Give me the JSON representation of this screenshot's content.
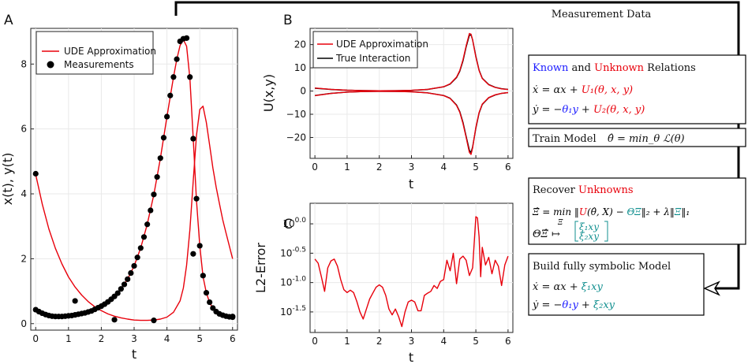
{
  "panels": {
    "a": "A",
    "b": "B",
    "c": "C"
  },
  "flow": {
    "title": "Measurement Data",
    "box1": {
      "known": "Known",
      "and": " and ",
      "unknown": "Unknown",
      "relations": " Relations",
      "eq1": "ẋ = αx + U₁(θ, x, y)",
      "eq2": "ẏ = −θ₁y + U₂(θ, x, y)"
    },
    "box2": {
      "label": "Train Model",
      "eq": "θ̂ = min_θ ℒ(θ)"
    },
    "box3": {
      "recover": "Recover ",
      "unknowns": "Unknowns",
      "eq1": "Ξ̂ = min_Ξ ‖U(θ̂, X) − ΘΞ‖₂ + λ‖Ξ‖₁",
      "eq2a": "ΘΞ̂ ↦",
      "eq2b": "ξ₁xy",
      "eq2c": "ξ₂xy"
    },
    "box4": {
      "label": "Build fully symbolic Model",
      "eq1": "ẋ = αx + ξ₁xy",
      "eq2": "ẏ = −θ₁y + ξ₂xy"
    }
  },
  "colors": {
    "red": "#e8000b",
    "black": "#000000",
    "blue": "#1a1aff",
    "teal": "#108f8f"
  },
  "chart_data": [
    {
      "id": "A",
      "type": "line",
      "xlabel": "t",
      "ylabel": "x(t), y(t)",
      "xlim": [
        -0.15,
        6.15
      ],
      "ylim": [
        -0.2,
        9.1
      ],
      "xticks": [
        0,
        1,
        2,
        3,
        4,
        5,
        6
      ],
      "yticks": [
        0,
        2,
        4,
        6,
        8
      ],
      "legend": "top-left",
      "series": [
        {
          "name": "UDE Approximation",
          "color": "#e8000b",
          "kind": "line",
          "x": [
            0,
            0.2,
            0.4,
            0.6,
            0.8,
            1.0,
            1.2,
            1.4,
            1.6,
            1.8,
            2.0,
            2.2,
            2.4,
            2.6,
            2.8,
            3.0,
            3.2,
            3.4,
            3.6,
            3.8,
            4.0,
            4.2,
            4.4,
            4.5,
            4.6,
            4.7,
            4.8,
            4.9,
            5.0,
            5.1,
            5.2,
            5.3,
            5.4,
            5.5,
            5.6,
            5.7,
            5.8,
            5.9,
            6.0
          ],
          "y": [
            4.6,
            3.68,
            2.92,
            2.32,
            1.84,
            1.44,
            1.13,
            0.88,
            0.68,
            0.52,
            0.4,
            0.3,
            0.23,
            0.18,
            0.14,
            0.11,
            0.1,
            0.1,
            0.11,
            0.14,
            0.2,
            0.35,
            0.7,
            1.1,
            1.8,
            2.9,
            4.4,
            5.8,
            6.6,
            6.7,
            6.2,
            5.5,
            4.8,
            4.2,
            3.7,
            3.2,
            2.8,
            2.4,
            2.0
          ]
        },
        {
          "name": "UDE Approximation",
          "color": "#e8000b",
          "kind": "line",
          "x": [
            0,
            0.2,
            0.4,
            0.6,
            0.8,
            1.0,
            1.2,
            1.4,
            1.6,
            1.8,
            2.0,
            2.2,
            2.4,
            2.6,
            2.8,
            3.0,
            3.2,
            3.4,
            3.6,
            3.8,
            4.0,
            4.2,
            4.3,
            4.4,
            4.5,
            4.6,
            4.7,
            4.8,
            4.9,
            5.0,
            5.1,
            5.2,
            5.3,
            5.4,
            5.5,
            5.6,
            5.7,
            5.8,
            5.9,
            6.0
          ],
          "y": [
            0.43,
            0.32,
            0.25,
            0.22,
            0.22,
            0.24,
            0.27,
            0.31,
            0.36,
            0.44,
            0.54,
            0.67,
            0.84,
            1.07,
            1.37,
            1.78,
            2.33,
            3.06,
            3.98,
            5.1,
            6.38,
            7.6,
            8.15,
            8.57,
            8.75,
            8.55,
            7.55,
            5.7,
            3.8,
            2.4,
            1.45,
            0.95,
            0.65,
            0.47,
            0.36,
            0.29,
            0.24,
            0.21,
            0.2,
            0.19
          ]
        },
        {
          "name": "Measurements",
          "color": "#000000",
          "kind": "scatter",
          "x": [
            0,
            0.1,
            0.2,
            0.3,
            0.4,
            0.5,
            0.6,
            0.7,
            0.8,
            0.9,
            1.0,
            1.1,
            1.2,
            1.3,
            1.4,
            1.5,
            1.6,
            1.7,
            1.8,
            1.9,
            2.0,
            2.1,
            2.2,
            2.3,
            2.4,
            2.5,
            2.6,
            2.7,
            2.8,
            2.9,
            3.0,
            3.1,
            3.2,
            3.3,
            3.4,
            3.5,
            3.6,
            3.7,
            3.8,
            3.9,
            4.0,
            4.1,
            4.2,
            4.3,
            4.4,
            4.5,
            4.6,
            4.7,
            4.8,
            4.9,
            5.0,
            5.1,
            5.2,
            5.3,
            5.4,
            5.5,
            5.6,
            5.7,
            5.8,
            5.9,
            6.0
          ],
          "y": [
            0.43,
            0.37,
            0.32,
            0.28,
            0.25,
            0.23,
            0.22,
            0.22,
            0.22,
            0.23,
            0.24,
            0.25,
            0.27,
            0.29,
            0.31,
            0.33,
            0.36,
            0.39,
            0.44,
            0.49,
            0.54,
            0.6,
            0.67,
            0.75,
            0.84,
            0.94,
            1.07,
            1.21,
            1.37,
            1.56,
            1.78,
            2.04,
            2.33,
            2.67,
            3.06,
            3.49,
            3.98,
            4.52,
            5.1,
            5.73,
            6.38,
            7.03,
            7.6,
            8.15,
            8.7,
            8.78,
            8.8,
            7.6,
            5.7,
            3.85,
            2.4,
            1.48,
            0.95,
            0.66,
            0.48,
            0.37,
            0.3,
            0.26,
            0.23,
            0.21,
            0.2
          ]
        },
        {
          "name": "Measurements",
          "color": "#000000",
          "kind": "scatter",
          "x": [
            0,
            1.2,
            2.4,
            3.6,
            4.8,
            6.0
          ],
          "y": [
            4.62,
            0.7,
            0.12,
            0.1,
            2.15,
            0.22
          ]
        }
      ]
    },
    {
      "id": "B",
      "type": "line",
      "xlabel": "t",
      "ylabel": "U(x,y)",
      "xlim": [
        -0.15,
        6.15
      ],
      "ylim": [
        -29,
        27
      ],
      "xticks": [
        0,
        1,
        2,
        3,
        4,
        5,
        6
      ],
      "yticks": [
        -20,
        -10,
        0,
        10,
        20
      ],
      "legend": "top-left",
      "series": [
        {
          "name": "True Interaction",
          "color": "#000000",
          "x": [
            0,
            0.5,
            1,
            1.5,
            2,
            2.5,
            3,
            3.5,
            4,
            4.2,
            4.4,
            4.5,
            4.6,
            4.7,
            4.8,
            4.85,
            4.9,
            5.0,
            5.1,
            5.2,
            5.4,
            5.6,
            5.8,
            6.0
          ],
          "y": [
            1.2,
            0.7,
            0.35,
            0.18,
            0.12,
            0.15,
            0.3,
            0.7,
            1.8,
            3.0,
            5.8,
            8.5,
            13,
            19,
            24,
            24.2,
            22,
            15,
            9,
            5.5,
            2.8,
            1.6,
            1.0,
            0.7
          ]
        },
        {
          "name": "True Interaction",
          "color": "#000000",
          "x": [
            0,
            0.5,
            1,
            1.5,
            2,
            2.5,
            3,
            3.5,
            4,
            4.2,
            4.4,
            4.5,
            4.6,
            4.7,
            4.8,
            4.85,
            4.9,
            5.0,
            5.1,
            5.2,
            5.4,
            5.6,
            5.8,
            6.0
          ],
          "y": [
            -1.9,
            -1.0,
            -0.45,
            -0.22,
            -0.13,
            -0.15,
            -0.3,
            -0.75,
            -1.9,
            -3.1,
            -6.0,
            -8.8,
            -13.5,
            -19.5,
            -25.5,
            -26.5,
            -24,
            -16,
            -9.5,
            -5.8,
            -2.9,
            -1.7,
            -1.0,
            -0.7
          ]
        },
        {
          "name": "UDE Approximation",
          "color": "#e8000b",
          "x": [
            0,
            0.5,
            1,
            1.5,
            2,
            2.5,
            3,
            3.5,
            4,
            4.2,
            4.4,
            4.5,
            4.6,
            4.7,
            4.8,
            4.85,
            4.9,
            5.0,
            5.1,
            5.2,
            5.4,
            5.6,
            5.8,
            6.0
          ],
          "y": [
            1.3,
            0.72,
            0.36,
            0.18,
            0.12,
            0.15,
            0.31,
            0.72,
            1.85,
            3.1,
            6.0,
            8.8,
            13.5,
            19.5,
            24.8,
            24.5,
            22,
            14.6,
            8.8,
            5.4,
            2.7,
            1.55,
            0.95,
            0.65
          ]
        },
        {
          "name": "UDE Approximation",
          "color": "#e8000b",
          "x": [
            0,
            0.5,
            1,
            1.5,
            2,
            2.5,
            3,
            3.5,
            4,
            4.2,
            4.4,
            4.5,
            4.6,
            4.7,
            4.8,
            4.85,
            4.9,
            5.0,
            5.1,
            5.2,
            5.4,
            5.6,
            5.8,
            6.0
          ],
          "y": [
            -2.0,
            -1.05,
            -0.47,
            -0.22,
            -0.13,
            -0.15,
            -0.31,
            -0.78,
            -1.95,
            -3.2,
            -6.2,
            -9.1,
            -14,
            -20,
            -26.5,
            -27.3,
            -24.5,
            -15.6,
            -9.2,
            -5.6,
            -2.8,
            -1.6,
            -0.95,
            -0.65
          ]
        }
      ]
    },
    {
      "id": "C",
      "type": "line",
      "xlabel": "t",
      "ylabel": "L2-Error",
      "xlim": [
        -0.15,
        6.15
      ],
      "ylim": [
        -1.85,
        0.35
      ],
      "yscale": "log10",
      "xticks": [
        0,
        1,
        2,
        3,
        4,
        5,
        6
      ],
      "yticks": [
        -1.5,
        -1.0,
        -0.5,
        0.0
      ],
      "yticklabels": [
        "10^{-1.5}",
        "10^{-1.0}",
        "10^{-0.5}",
        "10^{0.0}"
      ],
      "series": [
        {
          "name": "L2-Error",
          "color": "#e8000b",
          "x": [
            0,
            0.1,
            0.2,
            0.3,
            0.4,
            0.5,
            0.6,
            0.7,
            0.8,
            0.9,
            1.0,
            1.1,
            1.2,
            1.3,
            1.4,
            1.5,
            1.6,
            1.7,
            1.8,
            1.9,
            2.0,
            2.1,
            2.2,
            2.3,
            2.4,
            2.5,
            2.6,
            2.7,
            2.8,
            2.9,
            3.0,
            3.1,
            3.2,
            3.3,
            3.4,
            3.5,
            3.6,
            3.7,
            3.8,
            3.9,
            4.0,
            4.1,
            4.2,
            4.3,
            4.4,
            4.5,
            4.6,
            4.7,
            4.8,
            4.9,
            5.0,
            5.05,
            5.1,
            5.15,
            5.2,
            5.3,
            5.4,
            5.5,
            5.6,
            5.7,
            5.8,
            5.9,
            6.0
          ],
          "y": [
            -0.6,
            -0.67,
            -0.9,
            -1.15,
            -0.75,
            -0.63,
            -0.6,
            -0.72,
            -0.95,
            -1.12,
            -1.17,
            -1.13,
            -1.17,
            -1.32,
            -1.5,
            -1.62,
            -1.45,
            -1.28,
            -1.18,
            -1.08,
            -1.04,
            -1.08,
            -1.22,
            -1.45,
            -1.55,
            -1.45,
            -1.58,
            -1.75,
            -1.5,
            -1.33,
            -1.3,
            -1.33,
            -1.48,
            -1.48,
            -1.22,
            -1.18,
            -1.15,
            -1.05,
            -1.1,
            -0.98,
            -0.95,
            -0.62,
            -0.8,
            -0.5,
            -1.02,
            -0.6,
            -0.55,
            -0.62,
            -0.88,
            -0.75,
            0.12,
            0.1,
            -0.22,
            -0.9,
            -0.4,
            -0.7,
            -0.57,
            -0.85,
            -0.62,
            -0.72,
            -1.05,
            -0.7,
            -0.55
          ]
        }
      ]
    }
  ]
}
